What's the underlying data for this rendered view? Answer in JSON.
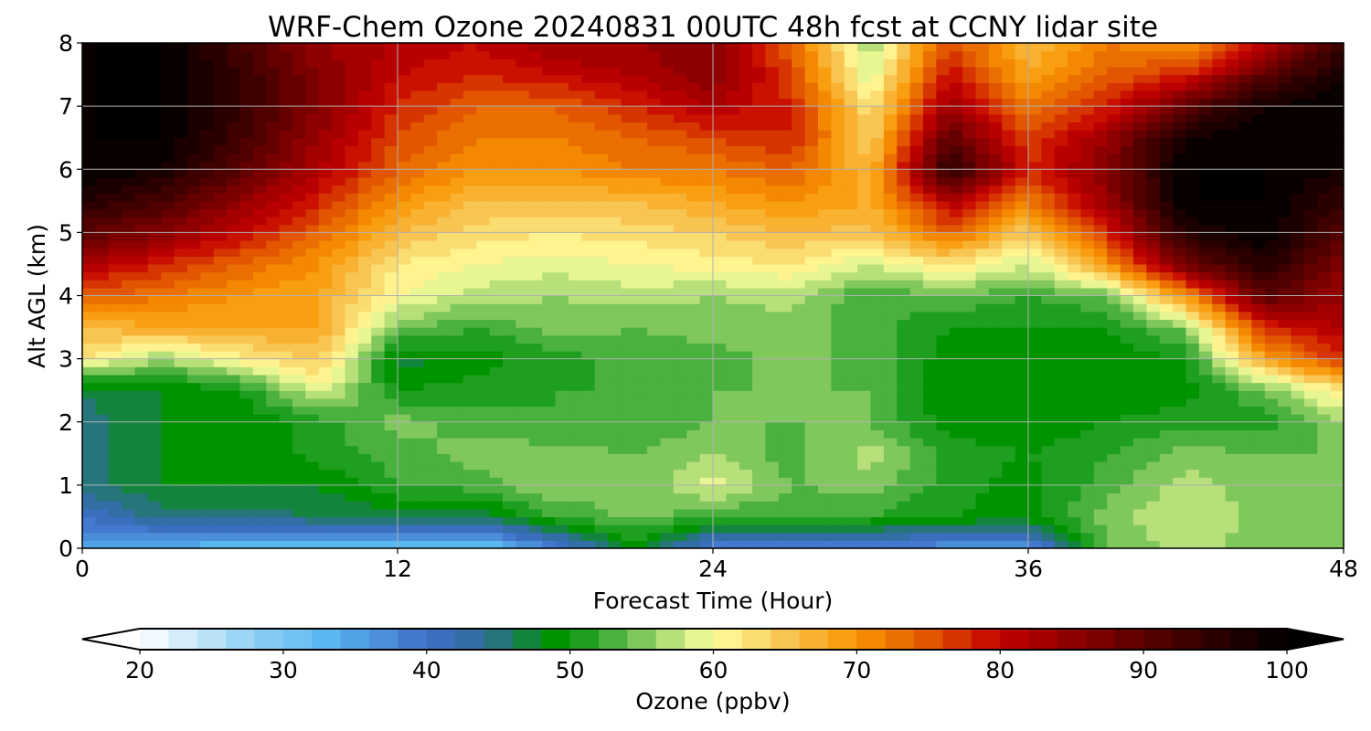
{
  "chart_data": {
    "type": "heatmap",
    "subtype": "filled-contour",
    "title": "WRF-Chem Ozone  20240831 00UTC 48h fcst at CCNY lidar site",
    "xlabel": "Forecast Time (Hour)",
    "ylabel": "Alt AGL (km)",
    "xlim": [
      0,
      48
    ],
    "ylim": [
      0,
      8
    ],
    "xticks": [
      0,
      12,
      24,
      36,
      48
    ],
    "yticks": [
      0,
      1,
      2,
      3,
      4,
      5,
      6,
      7,
      8
    ],
    "grid": true,
    "x_hours": [
      0,
      3,
      6,
      9,
      12,
      15,
      18,
      21,
      24,
      27,
      30,
      33,
      36,
      39,
      42,
      45,
      48
    ],
    "z_km": [
      0,
      0.5,
      1,
      1.5,
      2,
      2.5,
      3,
      3.5,
      4,
      4.5,
      5,
      5.5,
      6,
      6.5,
      7,
      7.5,
      8
    ],
    "ozone_ppbv": [
      [
        35,
        33,
        32,
        31,
        31,
        30,
        38,
        48,
        38,
        37,
        37,
        36,
        36,
        54,
        57,
        55,
        54
      ],
      [
        40,
        45,
        45,
        46,
        47,
        46,
        52,
        55,
        52,
        52,
        52,
        50,
        49,
        55,
        58,
        55,
        55
      ],
      [
        45,
        48,
        48,
        48,
        52,
        53,
        56,
        54,
        59,
        54,
        55,
        51,
        49,
        53,
        57,
        55,
        55
      ],
      [
        45,
        48,
        48,
        51,
        53,
        55,
        55,
        54,
        56,
        53,
        57,
        51,
        50,
        52,
        55,
        54,
        54
      ],
      [
        45,
        48,
        48,
        51,
        55,
        53,
        52,
        52,
        54,
        54,
        54,
        49,
        48,
        50,
        51,
        51,
        56
      ],
      [
        46,
        48,
        50,
        59,
        50,
        51,
        52,
        52,
        54,
        54,
        54,
        48,
        48,
        49,
        49,
        54,
        62
      ],
      [
        62,
        56,
        61,
        65,
        47,
        49,
        51,
        53,
        53,
        55,
        53,
        49,
        48,
        48,
        50,
        68,
        78
      ],
      [
        66,
        68,
        68,
        68,
        55,
        52,
        55,
        54,
        55,
        55,
        53,
        50,
        50,
        50,
        55,
        78,
        82
      ],
      [
        75,
        72,
        70,
        68,
        60,
        57,
        56,
        57,
        56,
        57,
        52,
        54,
        52,
        54,
        70,
        90,
        84
      ],
      [
        82,
        78,
        74,
        70,
        62,
        60,
        59,
        60,
        61,
        62,
        58,
        62,
        58,
        70,
        88,
        96,
        86
      ],
      [
        90,
        86,
        80,
        74,
        66,
        63,
        62,
        63,
        64,
        66,
        65,
        74,
        64,
        78,
        96,
        100,
        90
      ],
      [
        96,
        92,
        85,
        78,
        70,
        66,
        66,
        66,
        68,
        70,
        68,
        82,
        72,
        84,
        100,
        100,
        94
      ],
      [
        100,
        98,
        90,
        82,
        74,
        70,
        70,
        72,
        72,
        74,
        66,
        96,
        78,
        86,
        100,
        100,
        98
      ],
      [
        100,
        100,
        93,
        84,
        76,
        72,
        72,
        74,
        76,
        78,
        64,
        90,
        76,
        84,
        98,
        100,
        100
      ],
      [
        100,
        100,
        94,
        86,
        78,
        74,
        74,
        78,
        82,
        78,
        62,
        84,
        72,
        78,
        90,
        98,
        100
      ],
      [
        100,
        100,
        94,
        86,
        80,
        78,
        80,
        82,
        86,
        76,
        58,
        80,
        68,
        74,
        78,
        90,
        98
      ],
      [
        100,
        100,
        92,
        84,
        82,
        80,
        84,
        84,
        86,
        74,
        56,
        76,
        66,
        72,
        70,
        80,
        94
      ]
    ],
    "colorbar": {
      "label": "Ozone  (ppbv)",
      "min": 20,
      "max": 100,
      "step": 2,
      "ticks": [
        20,
        30,
        40,
        50,
        60,
        70,
        80,
        90,
        100
      ],
      "extend": "both",
      "placement": "bottom",
      "stops": [
        {
          "v": 20,
          "c": "#ffffff"
        },
        {
          "v": 28,
          "c": "#8fd0f4"
        },
        {
          "v": 33,
          "c": "#5ab8f0"
        },
        {
          "v": 40,
          "c": "#3f6fc9"
        },
        {
          "v": 44,
          "c": "#2f6e9a"
        },
        {
          "v": 49,
          "c": "#009300"
        },
        {
          "v": 52,
          "c": "#2fa52f"
        },
        {
          "v": 57,
          "c": "#b8e07a"
        },
        {
          "v": 60,
          "c": "#ffff9e"
        },
        {
          "v": 65,
          "c": "#f9c552"
        },
        {
          "v": 70,
          "c": "#f99400"
        },
        {
          "v": 75,
          "c": "#e25600"
        },
        {
          "v": 80,
          "c": "#c40000"
        },
        {
          "v": 90,
          "c": "#5a0000"
        },
        {
          "v": 100,
          "c": "#000000"
        }
      ]
    }
  }
}
